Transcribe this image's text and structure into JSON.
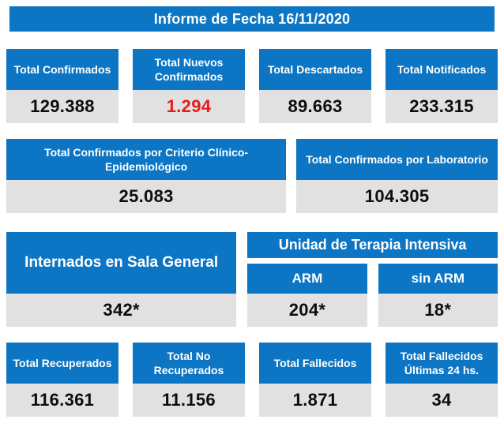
{
  "report": {
    "title": "Informe de Fecha 16/11/2020"
  },
  "colors": {
    "header_blue": "#0d76c4",
    "value_bg": "#e1e1e1",
    "alert_red": "#e81b1c",
    "value_text": "#0d0d0d",
    "header_text": "#ffffff"
  },
  "row1": {
    "cards": [
      {
        "label": "Total Confirmados",
        "value": "129.388"
      },
      {
        "label": "Total Nuevos Confirmados",
        "value": "1.294",
        "highlight": true
      },
      {
        "label": "Total Descartados",
        "value": "89.663"
      },
      {
        "label": "Total Notificados",
        "value": "233.315"
      }
    ]
  },
  "row2": {
    "cards": [
      {
        "label": "Total Confirmados por Criterio Clínico-Epidemiológico",
        "value": "25.083"
      },
      {
        "label": "Total Confirmados por Laboratorio",
        "value": "104.305"
      }
    ]
  },
  "row3": {
    "general_ward": {
      "label": "Internados en Sala General",
      "value": "342*"
    },
    "icu": {
      "title": "Unidad de Terapia Intensiva",
      "columns": [
        {
          "label": "ARM",
          "value": "204*"
        },
        {
          "label": "sin ARM",
          "value": "18*"
        }
      ]
    }
  },
  "row4": {
    "cards": [
      {
        "label": "Total Recuperados",
        "value": "116.361"
      },
      {
        "label": "Total No Recuperados",
        "value": "11.156"
      },
      {
        "label": "Total Fallecidos",
        "value": "1.871"
      },
      {
        "label": "Total Fallecidos Últimas 24 hs.",
        "value": "34"
      }
    ]
  }
}
